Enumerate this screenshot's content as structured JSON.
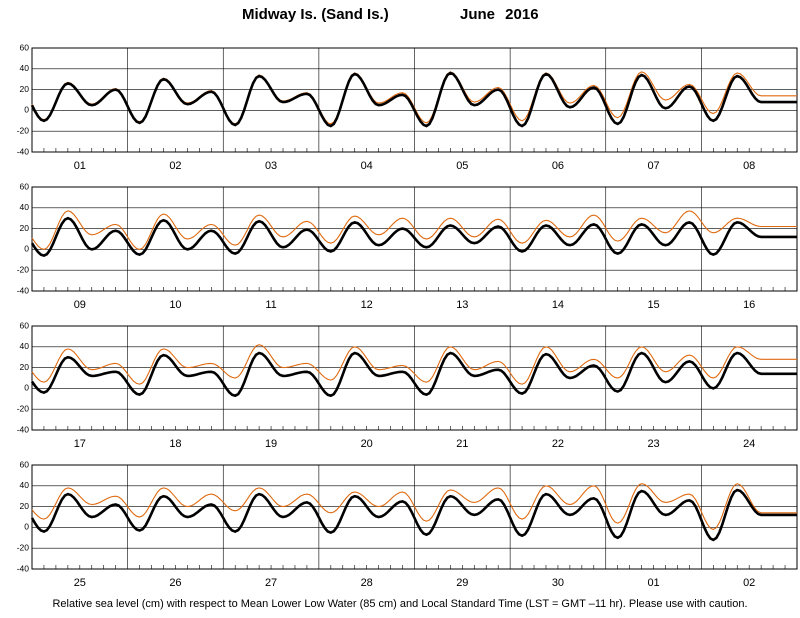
{
  "header": {
    "station": "Midway Is. (Sand Is.)",
    "period": "June   2016"
  },
  "footnote": "Relative sea level (cm) with respect to Mean Lower Low Water (85 cm) and Local Standard Time (LST = GMT –11 hr). Please use with caution.",
  "colors": {
    "predicted": "#000000",
    "observed": "#e06a10"
  },
  "chart_data": [
    {
      "type": "line",
      "ylim": [
        -40,
        60
      ],
      "yticks": [
        -40,
        -20,
        0,
        20,
        40,
        60
      ],
      "grid": true,
      "days": [
        "01",
        "02",
        "03",
        "04",
        "05",
        "06",
        "07",
        "08"
      ],
      "series": [
        {
          "key": "predicted",
          "values": [
            20,
            -10,
            26,
            5,
            20,
            -12,
            30,
            6,
            18,
            -14,
            33,
            8,
            16,
            -15,
            35,
            5,
            15,
            -15,
            36,
            5,
            20,
            -15,
            35,
            3,
            22,
            -13,
            34,
            2,
            23,
            -10,
            33,
            8
          ]
        },
        {
          "key": "observed",
          "values": [
            21,
            -9,
            27,
            6,
            21,
            -11,
            31,
            7,
            19,
            -13,
            34,
            9,
            17,
            -13,
            36,
            7,
            17,
            -12,
            37,
            8,
            22,
            -10,
            36,
            7,
            24,
            -7,
            37,
            10,
            25,
            -3,
            36,
            14
          ]
        }
      ]
    },
    {
      "type": "line",
      "ylim": [
        -40,
        60
      ],
      "yticks": [
        -40,
        -20,
        0,
        20,
        40,
        60
      ],
      "grid": true,
      "days": [
        "09",
        "10",
        "11",
        "12",
        "13",
        "14",
        "15",
        "16"
      ],
      "series": [
        {
          "key": "predicted",
          "values": [
            18,
            -6,
            30,
            0,
            18,
            -5,
            28,
            0,
            18,
            -4,
            27,
            2,
            19,
            -2,
            26,
            4,
            20,
            2,
            23,
            6,
            22,
            -2,
            23,
            4,
            24,
            -4,
            24,
            4,
            26,
            -5,
            26,
            12
          ]
        },
        {
          "key": "observed",
          "values": [
            22,
            0,
            37,
            14,
            24,
            0,
            34,
            10,
            24,
            4,
            33,
            12,
            27,
            6,
            32,
            14,
            30,
            10,
            30,
            12,
            29,
            6,
            28,
            12,
            33,
            8,
            30,
            16,
            37,
            16,
            30,
            22
          ]
        }
      ]
    },
    {
      "type": "line",
      "ylim": [
        -40,
        60
      ],
      "yticks": [
        -40,
        -20,
        0,
        20,
        40,
        60
      ],
      "grid": true,
      "days": [
        "17",
        "18",
        "19",
        "20",
        "21",
        "22",
        "23",
        "24"
      ],
      "series": [
        {
          "key": "predicted",
          "values": [
            17,
            -4,
            30,
            12,
            16,
            -6,
            32,
            12,
            16,
            -7,
            34,
            12,
            16,
            -7,
            34,
            12,
            16,
            -6,
            34,
            12,
            18,
            -5,
            33,
            10,
            22,
            -3,
            34,
            6,
            26,
            0,
            34,
            14
          ]
        },
        {
          "key": "observed",
          "values": [
            26,
            6,
            38,
            18,
            24,
            4,
            38,
            20,
            24,
            10,
            42,
            20,
            24,
            8,
            40,
            18,
            22,
            6,
            40,
            18,
            26,
            4,
            40,
            16,
            28,
            10,
            40,
            16,
            32,
            10,
            40,
            28
          ]
        }
      ]
    },
    {
      "type": "line",
      "ylim": [
        -40,
        60
      ],
      "yticks": [
        -40,
        -20,
        0,
        20,
        40,
        60
      ],
      "grid": true,
      "days": [
        "25",
        "26",
        "27",
        "28",
        "29",
        "30",
        "01",
        "02"
      ],
      "series": [
        {
          "key": "predicted",
          "values": [
            22,
            -4,
            32,
            10,
            22,
            -3,
            30,
            10,
            22,
            -4,
            32,
            10,
            24,
            -5,
            30,
            10,
            25,
            -7,
            30,
            12,
            27,
            -8,
            32,
            12,
            28,
            -10,
            35,
            12,
            26,
            -12,
            36,
            12
          ]
        },
        {
          "key": "observed",
          "values": [
            26,
            8,
            38,
            22,
            30,
            10,
            38,
            20,
            32,
            16,
            38,
            20,
            32,
            14,
            34,
            20,
            34,
            6,
            36,
            24,
            38,
            8,
            40,
            22,
            40,
            4,
            42,
            24,
            32,
            -2,
            42,
            14
          ]
        }
      ]
    }
  ]
}
